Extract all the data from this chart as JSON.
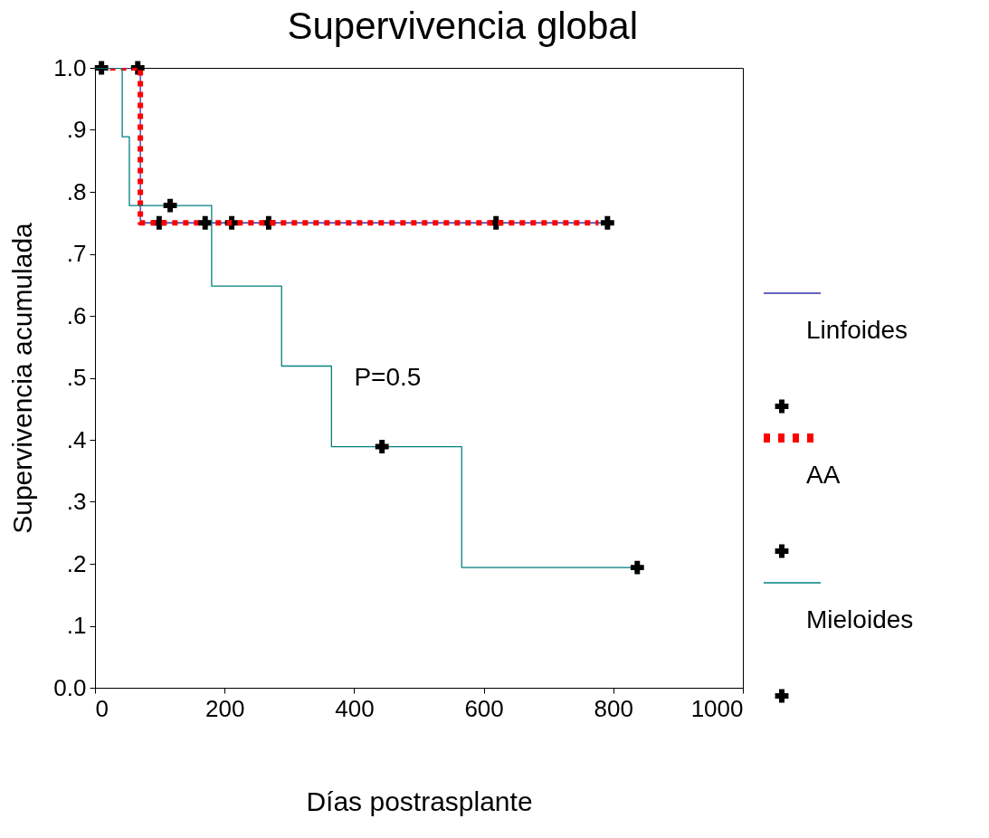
{
  "chart_data": {
    "type": "step",
    "title": "Supervivencia global",
    "xlabel": "Días postrasplante",
    "ylabel": "Supervivencia acumulada",
    "xlim": [
      0,
      1000
    ],
    "xticks": [
      0,
      200,
      400,
      600,
      800,
      1000
    ],
    "ylim": [
      0,
      1
    ],
    "yticks": [
      {
        "value": 0,
        "label": "0.0"
      },
      {
        "value": 0.1,
        "label": ".1"
      },
      {
        "value": 0.2,
        "label": ".2"
      },
      {
        "value": 0.3,
        "label": ".3"
      },
      {
        "value": 0.4,
        "label": ".4"
      },
      {
        "value": 0.5,
        "label": ".5"
      },
      {
        "value": 0.6,
        "label": ".6"
      },
      {
        "value": 0.7,
        "label": ".7"
      },
      {
        "value": 0.8,
        "label": ".8"
      },
      {
        "value": 0.9,
        "label": ".9"
      },
      {
        "value": 1,
        "label": "1.0"
      }
    ],
    "grid": false,
    "legend": "right",
    "annotations": [
      "P=0.5"
    ],
    "series": [
      {
        "name": "Linfoides",
        "type": "step",
        "color": "#3333aa",
        "line_style": "solid",
        "x": [
          0,
          70,
          791
        ],
        "values": [
          1,
          0.75,
          0.75
        ]
      },
      {
        "type": "scatter",
        "marker": "cross",
        "color": "#000000",
        "x": [
          66,
          99,
          211,
          268,
          619,
          791
        ],
        "values": [
          1,
          0.75,
          0.75,
          0.75,
          0.75,
          0.75
        ]
      },
      {
        "name": "AA",
        "type": "step",
        "color": "#ff0000",
        "line_style": "dashed",
        "x": [
          0,
          70,
          777
        ],
        "values": [
          1,
          0.75,
          0.75
        ]
      },
      {
        "type": "scatter",
        "marker": "cross",
        "color": "#000000",
        "x": [
          10,
          170
        ],
        "values": [
          1,
          0.75
        ]
      },
      {
        "name": "Mieloides",
        "type": "step",
        "color": "#008080",
        "line_style": "solid",
        "x": [
          0,
          42,
          53,
          180,
          288,
          365,
          566,
          837
        ],
        "values": [
          1,
          0.889,
          0.778,
          0.648,
          0.519,
          0.389,
          0.194,
          0.194
        ]
      },
      {
        "type": "scatter",
        "marker": "cross",
        "color": "#000000",
        "x": [
          116,
          443,
          837
        ],
        "values": [
          0.778,
          0.389,
          0.194
        ]
      }
    ]
  }
}
